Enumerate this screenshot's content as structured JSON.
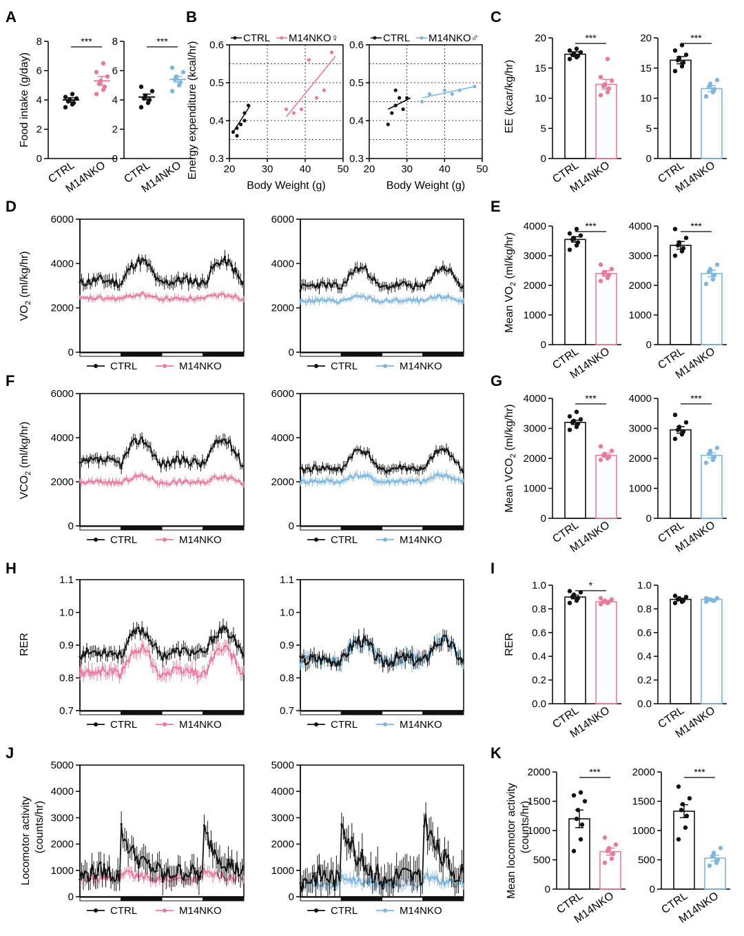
{
  "colors": {
    "ctrl": "#111111",
    "female": "#e8799f",
    "male": "#7fb6dd",
    "grid": "#000000"
  },
  "chart_data": {
    "A": {
      "label": "A",
      "type": "scatter",
      "ylabel": "Food intake (g/day)",
      "ylim": [
        0,
        8
      ],
      "yticks": [
        0,
        2,
        4,
        6,
        8
      ],
      "categories": [
        "CTRL",
        "M14NKO"
      ],
      "sig": "***",
      "female": {
        "ctrl": {
          "mean": 4.0,
          "sem": 0.15,
          "points": [
            3.5,
            3.7,
            3.8,
            3.9,
            4.0,
            4.1,
            4.2,
            4.4
          ]
        },
        "ko": {
          "mean": 5.3,
          "sem": 0.3,
          "points": [
            4.4,
            4.7,
            4.9,
            5.1,
            5.3,
            5.6,
            5.9,
            6.5
          ]
        }
      },
      "male": {
        "ctrl": {
          "mean": 4.2,
          "sem": 0.2,
          "points": [
            3.5,
            3.8,
            4.0,
            4.1,
            4.3,
            4.6,
            4.9
          ]
        },
        "ko": {
          "mean": 5.4,
          "sem": 0.2,
          "points": [
            4.6,
            5.0,
            5.2,
            5.4,
            5.6,
            5.9,
            6.2
          ]
        }
      }
    },
    "B": {
      "label": "B",
      "type": "scatter",
      "ylabel": "Energy expenditure (kcal/hr)",
      "xlabel": "Body Weight (g)",
      "xlim": [
        20,
        50
      ],
      "ylim": [
        0.3,
        0.6
      ],
      "xticks": [
        20,
        30,
        40,
        50
      ],
      "yticks": [
        0.3,
        0.4,
        0.5,
        0.6
      ],
      "female": {
        "legend": [
          "CTRL",
          "M14NKO♀"
        ],
        "ctrl": {
          "x": [
            21,
            22,
            23,
            24,
            25,
            22,
            24
          ],
          "y": [
            0.37,
            0.36,
            0.39,
            0.42,
            0.44,
            0.38,
            0.4
          ],
          "fit": [
            [
              21,
              0.37
            ],
            [
              25.5,
              0.44
            ]
          ]
        },
        "ko": {
          "x": [
            35,
            37,
            39,
            41,
            43,
            45,
            47
          ],
          "y": [
            0.43,
            0.42,
            0.43,
            0.56,
            0.46,
            0.48,
            0.58
          ],
          "fit": [
            [
              35,
              0.41
            ],
            [
              48,
              0.57
            ]
          ]
        }
      },
      "male": {
        "legend": [
          "CTRL",
          "M14NKO♂"
        ],
        "ctrl": {
          "x": [
            25,
            26,
            27,
            28,
            29,
            30,
            27
          ],
          "y": [
            0.39,
            0.42,
            0.44,
            0.46,
            0.43,
            0.46,
            0.48
          ],
          "fit": [
            [
              25,
              0.43
            ],
            [
              31,
              0.46
            ]
          ]
        },
        "ko": {
          "x": [
            34,
            36,
            40,
            42,
            44,
            48
          ],
          "y": [
            0.45,
            0.47,
            0.48,
            0.47,
            0.48,
            0.49
          ],
          "fit": [
            [
              34,
              0.46
            ],
            [
              48,
              0.49
            ]
          ]
        }
      }
    },
    "C": {
      "label": "C",
      "type": "bar",
      "ylabel": "EE (kcar/kg/hr)",
      "ylim": [
        0,
        20
      ],
      "yticks": [
        0,
        5,
        10,
        15,
        20
      ],
      "categories": [
        "CTRL",
        "M14NKO"
      ],
      "sig": "***",
      "female": {
        "ctrl": {
          "mean": 17.3,
          "sem": 0.4,
          "points": [
            16.5,
            16.8,
            17.0,
            17.2,
            17.4,
            17.6,
            17.9,
            18.2
          ]
        },
        "ko": {
          "mean": 12.3,
          "sem": 0.8,
          "points": [
            10.5,
            11.0,
            11.6,
            12.0,
            12.3,
            12.9,
            13.5,
            16.5
          ]
        }
      },
      "male": {
        "ctrl": {
          "mean": 16.3,
          "sem": 0.6,
          "points": [
            14.5,
            15.3,
            15.9,
            16.3,
            16.7,
            17.2,
            17.9,
            18.8
          ]
        },
        "ko": {
          "mean": 11.6,
          "sem": 0.5,
          "points": [
            10.3,
            11.0,
            11.5,
            11.9,
            12.4,
            13.0
          ]
        }
      }
    },
    "D": {
      "label": "D",
      "type": "line",
      "ylabel": "VO2 (ml/kg/hr)",
      "ylim": [
        0,
        6000
      ],
      "yticks": [
        0,
        2000,
        4000,
        6000
      ],
      "female": {
        "legend": [
          "CTRL",
          "M14NKO"
        ],
        "ctrl": {
          "light": 3100,
          "dark": 4100,
          "noise": 220,
          "err": 260
        },
        "ko": {
          "light": 2400,
          "dark": 2600,
          "noise": 90,
          "err": 140
        }
      },
      "male": {
        "legend": [
          "CTRL",
          "M14NKO"
        ],
        "ctrl": {
          "light": 2900,
          "dark": 3800,
          "noise": 170,
          "err": 220
        },
        "ko": {
          "light": 2300,
          "dark": 2500,
          "noise": 90,
          "err": 140
        }
      }
    },
    "E": {
      "label": "E",
      "type": "bar",
      "ylabel": "Mean VO2 (ml/kg/hr)",
      "ylim": [
        0,
        4000
      ],
      "yticks": [
        0,
        1000,
        2000,
        3000,
        4000
      ],
      "categories": [
        "CTRL",
        "M14NKO"
      ],
      "sig": "***",
      "female": {
        "ctrl": {
          "mean": 3550,
          "sem": 90,
          "points": [
            3200,
            3350,
            3450,
            3550,
            3600,
            3680,
            3750,
            3900
          ]
        },
        "ko": {
          "mean": 2400,
          "sem": 90,
          "points": [
            2150,
            2250,
            2350,
            2400,
            2450,
            2550,
            2700
          ]
        }
      },
      "male": {
        "ctrl": {
          "mean": 3350,
          "sem": 130,
          "points": [
            3000,
            3150,
            3250,
            3350,
            3450,
            3600,
            3900
          ]
        },
        "ko": {
          "mean": 2400,
          "sem": 110,
          "points": [
            2050,
            2200,
            2350,
            2450,
            2550,
            2700
          ]
        }
      }
    },
    "F": {
      "label": "F",
      "type": "line",
      "ylabel": "VCO2 (ml/kg/hr)",
      "ylim": [
        0,
        6000
      ],
      "yticks": [
        0,
        2000,
        4000,
        6000
      ],
      "female": {
        "legend": [
          "CTRL",
          "M14NKO"
        ],
        "ctrl": {
          "light": 2800,
          "dark": 3900,
          "noise": 200,
          "err": 240
        },
        "ko": {
          "light": 1950,
          "dark": 2250,
          "noise": 100,
          "err": 150
        }
      },
      "male": {
        "legend": [
          "CTRL",
          "M14NKO"
        ],
        "ctrl": {
          "light": 2500,
          "dark": 3450,
          "noise": 150,
          "err": 200
        },
        "ko": {
          "light": 2000,
          "dark": 2300,
          "noise": 110,
          "err": 170
        }
      }
    },
    "G": {
      "label": "G",
      "type": "bar",
      "ylabel": "Mean VCO2 (ml/kg/hr)",
      "ylim": [
        0,
        4000
      ],
      "yticks": [
        0,
        1000,
        2000,
        3000,
        4000
      ],
      "categories": [
        "CTRL",
        "M14NKO"
      ],
      "sig": "***",
      "female": {
        "ctrl": {
          "mean": 3200,
          "sem": 70,
          "points": [
            2950,
            3050,
            3150,
            3200,
            3250,
            3300,
            3400,
            3550
          ]
        },
        "ko": {
          "mean": 2100,
          "sem": 60,
          "points": [
            1950,
            2000,
            2050,
            2100,
            2150,
            2250,
            2400
          ]
        }
      },
      "male": {
        "ctrl": {
          "mean": 2950,
          "sem": 110,
          "points": [
            2650,
            2800,
            2900,
            2950,
            3050,
            3200,
            3450
          ]
        },
        "ko": {
          "mean": 2100,
          "sem": 80,
          "points": [
            1850,
            1950,
            2050,
            2150,
            2250,
            2350
          ]
        }
      }
    },
    "H": {
      "label": "H",
      "type": "line",
      "ylabel": "RER",
      "ylim": [
        0.7,
        1.1
      ],
      "yticks": [
        0.7,
        0.8,
        0.9,
        1.0,
        1.1
      ],
      "tickfmt": 1,
      "female": {
        "legend": [
          "CTRL",
          "M14NKO"
        ],
        "ctrl": {
          "light": 0.87,
          "dark": 0.945,
          "noise": 0.015,
          "err": 0.02
        },
        "ko": {
          "light": 0.81,
          "dark": 0.89,
          "noise": 0.015,
          "err": 0.02
        }
      },
      "male": {
        "legend": [
          "CTRL",
          "M14NKO"
        ],
        "ctrl": {
          "light": 0.85,
          "dark": 0.915,
          "noise": 0.02,
          "err": 0.02
        },
        "ko": {
          "light": 0.85,
          "dark": 0.91,
          "noise": 0.018,
          "err": 0.02
        }
      }
    },
    "I": {
      "label": "I",
      "type": "bar",
      "ylabel": "RER",
      "ylim": [
        0,
        1.0
      ],
      "yticks": [
        0,
        0.2,
        0.4,
        0.6,
        0.8,
        1.0
      ],
      "tickfmt": 1,
      "categories": [
        "CTRL",
        "M14NKO"
      ],
      "sig_female": "*",
      "female": {
        "ctrl": {
          "mean": 0.9,
          "sem": 0.015,
          "points": [
            0.85,
            0.87,
            0.89,
            0.9,
            0.92,
            0.94,
            0.95
          ]
        },
        "ko": {
          "mean": 0.86,
          "sem": 0.008,
          "points": [
            0.84,
            0.85,
            0.86,
            0.86,
            0.87,
            0.88,
            0.89
          ]
        }
      },
      "male": {
        "ctrl": {
          "mean": 0.88,
          "sem": 0.01,
          "points": [
            0.85,
            0.86,
            0.87,
            0.88,
            0.89,
            0.9,
            0.91
          ]
        },
        "ko": {
          "mean": 0.88,
          "sem": 0.006,
          "points": [
            0.86,
            0.87,
            0.87,
            0.88,
            0.88,
            0.89,
            0.89
          ]
        }
      }
    },
    "J": {
      "label": "J",
      "type": "line",
      "ylabel_lines": [
        "Locomotor activity",
        "(counts/hr)"
      ],
      "ylim": [
        0,
        5000
      ],
      "yticks": [
        0,
        1000,
        2000,
        3000,
        4000,
        5000
      ],
      "female": {
        "legend": [
          "CTRL",
          "M14NKO"
        ],
        "ctrl": {
          "light": 750,
          "dark": 2200,
          "noise": 350,
          "err": 450
        },
        "ko": {
          "light": 650,
          "dark": 900,
          "noise": 150,
          "err": 200
        }
      },
      "male": {
        "legend": [
          "CTRL",
          "M14NKO"
        ],
        "ctrl": {
          "light": 500,
          "dark": 2600,
          "noise": 450,
          "err": 550
        },
        "ko": {
          "light": 450,
          "dark": 750,
          "noise": 150,
          "err": 200
        }
      }
    },
    "K": {
      "label": "K",
      "type": "bar",
      "ylabel_lines": [
        "Mean locomotor activity",
        "(counts/hr)"
      ],
      "ylim": [
        0,
        2000
      ],
      "yticks": [
        0,
        500,
        1000,
        1500,
        2000
      ],
      "categories": [
        "CTRL",
        "M14NKO"
      ],
      "sig": "***",
      "female": {
        "ctrl": {
          "mean": 1200,
          "sem": 150,
          "points": [
            650,
            850,
            1100,
            1200,
            1350,
            1500,
            1600,
            1650
          ]
        },
        "ko": {
          "mean": 640,
          "sem": 60,
          "points": [
            450,
            520,
            600,
            650,
            700,
            760,
            880
          ]
        }
      },
      "male": {
        "ctrl": {
          "mean": 1330,
          "sem": 110,
          "points": [
            850,
            1050,
            1250,
            1350,
            1450,
            1550,
            1750
          ]
        },
        "ko": {
          "mean": 530,
          "sem": 50,
          "points": [
            400,
            450,
            500,
            560,
            620,
            700
          ]
        }
      }
    }
  }
}
